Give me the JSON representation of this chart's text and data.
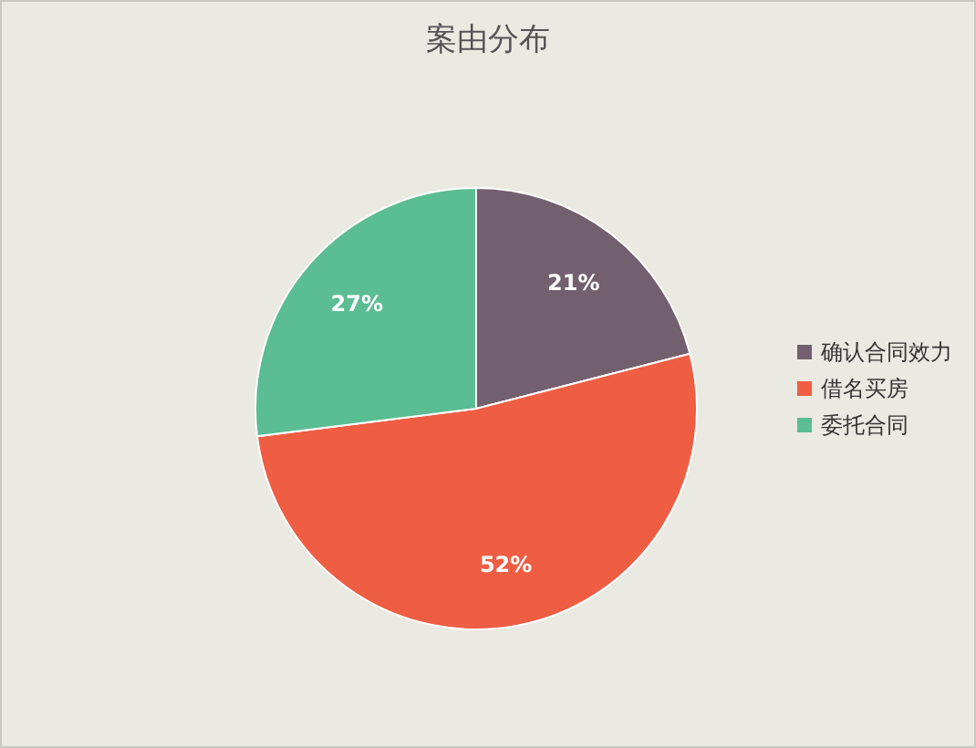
{
  "chart_data": {
    "type": "pie",
    "title": "案由分布",
    "categories": [
      "确认合同效力",
      "借名买房",
      "委托合同"
    ],
    "values": [
      21,
      52,
      27
    ],
    "value_labels": [
      "21%",
      "52%",
      "27%"
    ],
    "colors": [
      "#73606f",
      "#ef5d43",
      "#5bbd93"
    ],
    "legend": "right"
  }
}
